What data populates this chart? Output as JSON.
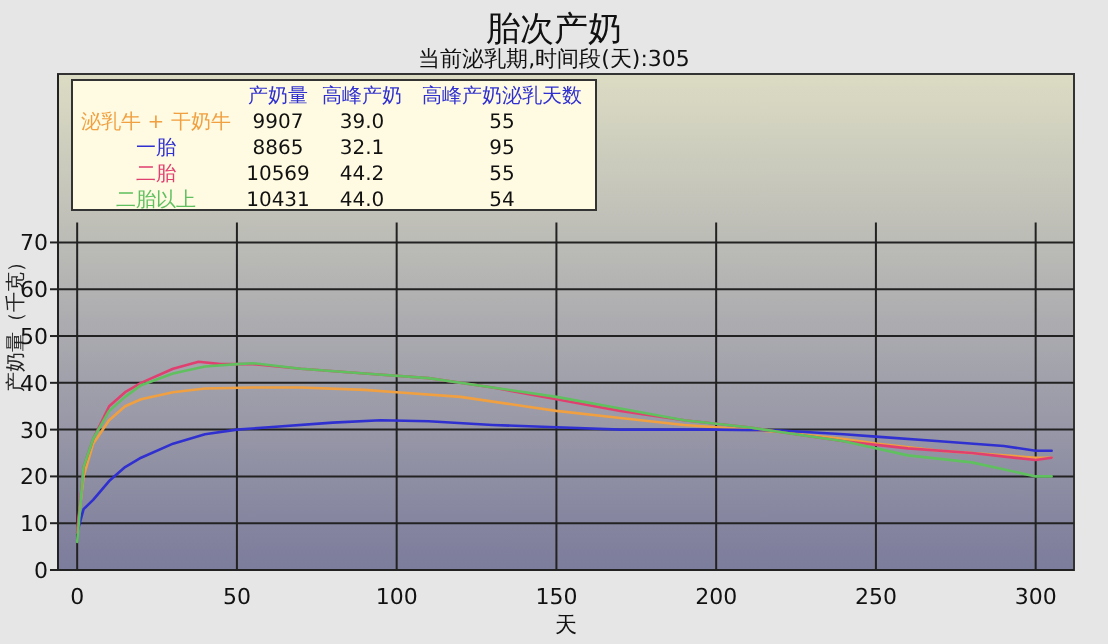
{
  "chart_data": {
    "type": "line",
    "title": "胎次产奶",
    "subtitle": "当前泌乳期,时间段(天):305",
    "xlabel": "天",
    "ylabel": "产奶量（千克）",
    "xlim": [
      -6,
      312
    ],
    "ylim": [
      0,
      106
    ],
    "xticks": [
      0,
      50,
      100,
      150,
      200,
      250,
      300
    ],
    "yticks": [
      0,
      10,
      20,
      30,
      40,
      50,
      60,
      70
    ],
    "grid": true,
    "legend": "top left",
    "marker": "none",
    "line_style": "solid",
    "annotations": [
      "产奶量",
      "高峰产奶",
      "高峰产奶泌乳天数",
      "9907",
      "39.0",
      "55",
      "8865",
      "32.1",
      "95",
      "10569",
      "44.2",
      "55",
      "10431",
      "44.0",
      "54"
    ],
    "series": [
      {
        "name": "泌乳牛 + 干奶牛",
        "color": "#f0a040",
        "x": [
          0,
          2,
          5,
          10,
          15,
          20,
          30,
          40,
          55,
          70,
          90,
          100,
          120,
          140,
          150,
          170,
          190,
          210,
          220,
          240,
          250,
          270,
          290,
          300,
          305
        ],
        "values": [
          8,
          20,
          27,
          32,
          35,
          36.5,
          38,
          38.8,
          39,
          39,
          38.5,
          38,
          37,
          35,
          34,
          32.5,
          31,
          30,
          29.5,
          28,
          27,
          25.5,
          24.5,
          24,
          24
        ]
      },
      {
        "name": "一胎",
        "color": "#3030d0",
        "x": [
          0,
          2,
          5,
          10,
          15,
          20,
          30,
          40,
          50,
          60,
          80,
          95,
          110,
          130,
          150,
          170,
          200,
          220,
          240,
          250,
          270,
          290,
          300,
          305
        ],
        "values": [
          8,
          13,
          15,
          19,
          22,
          24,
          27,
          29,
          30,
          30.5,
          31.5,
          32,
          31.8,
          31,
          30.5,
          30,
          30,
          29.8,
          29,
          28.5,
          27.5,
          26.5,
          25.5,
          25.5
        ]
      },
      {
        "name": "二胎",
        "color": "#e04070",
        "x": [
          0,
          2,
          5,
          10,
          15,
          20,
          30,
          38,
          45,
          55,
          70,
          90,
          110,
          130,
          150,
          170,
          190,
          210,
          220,
          240,
          260,
          280,
          300,
          305
        ],
        "values": [
          8,
          22,
          28,
          35,
          38,
          40,
          43,
          44.5,
          44,
          44,
          43,
          42,
          41,
          39,
          36.5,
          34,
          32,
          30.5,
          29.5,
          27.5,
          26,
          25,
          23.5,
          24
        ]
      },
      {
        "name": "二胎以上",
        "color": "#60c060",
        "x": [
          0,
          2,
          5,
          10,
          15,
          20,
          30,
          40,
          50,
          55,
          70,
          90,
          110,
          130,
          150,
          170,
          190,
          210,
          220,
          240,
          260,
          280,
          300,
          305
        ],
        "values": [
          6,
          22,
          28,
          34,
          37,
          39.5,
          42,
          43.5,
          44,
          44.2,
          43,
          42,
          41,
          39,
          37,
          34.5,
          32,
          30.5,
          29.5,
          27.5,
          24.5,
          23,
          20,
          20
        ]
      }
    ]
  }
}
